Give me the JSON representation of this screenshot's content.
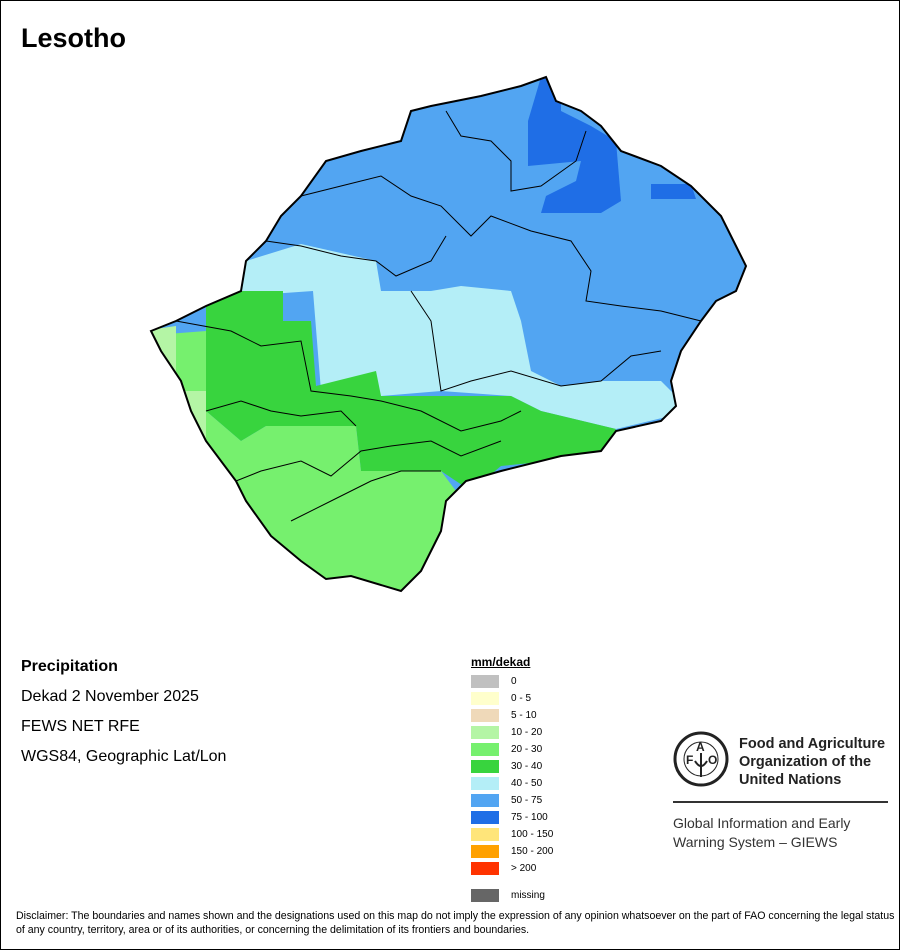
{
  "title": "Lesotho",
  "info": {
    "variable": "Precipitation",
    "period": "Dekad 2 November 2025",
    "source": "FEWS NET RFE",
    "projection": "WGS84, Geographic Lat/Lon"
  },
  "legend": {
    "title": "mm/dekad",
    "classes": [
      {
        "label": "0",
        "color": "#c0c0c0"
      },
      {
        "label": "0 - 5",
        "color": "#ffffcc"
      },
      {
        "label": "5 - 10",
        "color": "#efd9b9"
      },
      {
        "label": "10 - 20",
        "color": "#b4f5a5"
      },
      {
        "label": "20 - 30",
        "color": "#76f06e"
      },
      {
        "label": "30 - 40",
        "color": "#38d43e"
      },
      {
        "label": "40 - 50",
        "color": "#b4eef7"
      },
      {
        "label": "50 - 75",
        "color": "#52a5f2"
      },
      {
        "label": "75 - 100",
        "color": "#1f6ee6"
      },
      {
        "label": "100 - 150",
        "color": "#ffe57a"
      },
      {
        "label": "150 - 200",
        "color": "#ffa100"
      },
      {
        "label": "> 200",
        "color": "#ff3300"
      }
    ],
    "missing": {
      "label": "missing",
      "color": "#666666"
    }
  },
  "logo": {
    "org_line1": "Food and Agriculture",
    "org_line2": "Organization of the",
    "org_line3": "United Nations",
    "giews_line1": "Global Information and Early",
    "giews_line2": "Warning System – GIEWS",
    "emblem_text": "FAO FIAT PANIS"
  },
  "disclaimer": "Disclaimer: The boundaries and names shown and the designations used on this map do not imply the expression of any opinion whatsoever on the part of FAO concerning the legal status of any country, territory, area or of its authorities, or concerning the delimitation of its frontiers and boundaries."
}
